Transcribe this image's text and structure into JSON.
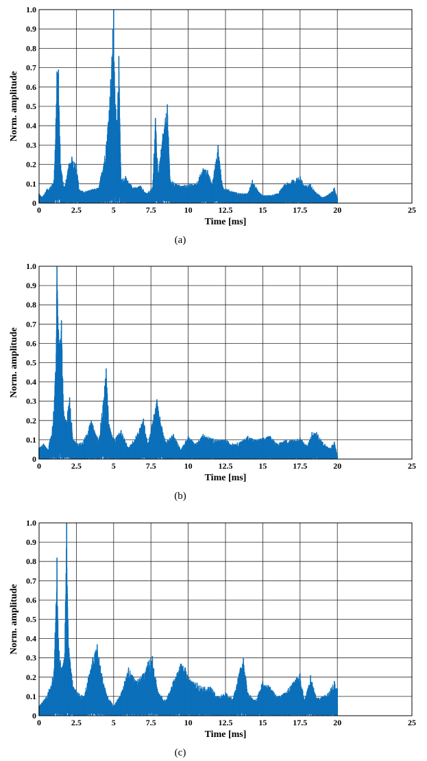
{
  "chart_data": [
    {
      "type": "line",
      "panel_label": "(a)",
      "xlabel": "Time [ms]",
      "ylabel": "Norm. amplitude",
      "xlim": [
        0,
        25
      ],
      "ylim": [
        0,
        1.0
      ],
      "xticks": [
        "0",
        "2.5",
        "5",
        "7.5",
        "10",
        "12.5",
        "15",
        "17.5",
        "20",
        "25"
      ],
      "yticks": [
        "0",
        "0.1",
        "0.2",
        "0.3",
        "0.4",
        "0.5",
        "0.6",
        "0.7",
        "0.8",
        "0.9",
        "1.0"
      ],
      "grid": true,
      "line_color": "#0b6fba",
      "series": [
        {
          "x": [
            0,
            0.2,
            0.5,
            0.8,
            1.0,
            1.2,
            1.3,
            1.45,
            1.7,
            2.0,
            2.2,
            2.5,
            2.7,
            3.0,
            3.5,
            4.0,
            4.5,
            4.8,
            4.95,
            5.0,
            5.05,
            5.2,
            5.35,
            5.5,
            5.8,
            6.1,
            6.5,
            6.8,
            7.2,
            7.6,
            7.8,
            8.0,
            8.3,
            8.6,
            8.8,
            9.2,
            9.6,
            10.0,
            10.5,
            11.0,
            11.3,
            11.6,
            12.0,
            12.3,
            12.7,
            13.0,
            13.5,
            14.0,
            14.3,
            14.7,
            15.0,
            15.5,
            16.0,
            16.5,
            17.0,
            17.5,
            17.8,
            18.2,
            18.5,
            19.0,
            19.5,
            19.8,
            20.0
          ],
          "y": [
            0.05,
            0.03,
            0.07,
            0.09,
            0.12,
            0.68,
            0.69,
            0.2,
            0.08,
            0.2,
            0.24,
            0.2,
            0.07,
            0.06,
            0.07,
            0.08,
            0.3,
            0.64,
            0.9,
            1.0,
            0.68,
            0.43,
            0.76,
            0.12,
            0.14,
            0.1,
            0.08,
            0.09,
            0.05,
            0.08,
            0.44,
            0.16,
            0.36,
            0.51,
            0.12,
            0.1,
            0.09,
            0.1,
            0.1,
            0.18,
            0.17,
            0.1,
            0.3,
            0.09,
            0.07,
            0.06,
            0.05,
            0.05,
            0.12,
            0.06,
            0.04,
            0.04,
            0.05,
            0.1,
            0.12,
            0.14,
            0.09,
            0.1,
            0.06,
            0.03,
            0.05,
            0.08,
            0.03
          ]
        }
      ]
    },
    {
      "type": "line",
      "panel_label": "(b)",
      "xlabel": "Time [ms]",
      "ylabel": "Norm. amplitude",
      "xlim": [
        0,
        25
      ],
      "ylim": [
        0,
        1.0
      ],
      "xticks": [
        "0",
        "2.5",
        "5",
        "7.5",
        "10",
        "12.5",
        "15",
        "17.5",
        "20",
        "25"
      ],
      "yticks": [
        "0",
        "0.1",
        "0.2",
        "0.3",
        "0.4",
        "0.5",
        "0.6",
        "0.7",
        "0.8",
        "0.9",
        "1.0"
      ],
      "grid": true,
      "line_color": "#0b6fba",
      "series": [
        {
          "x": [
            0,
            0.3,
            0.6,
            0.9,
            1.1,
            1.2,
            1.35,
            1.5,
            1.65,
            1.8,
            2.05,
            2.3,
            2.6,
            3.0,
            3.5,
            4.0,
            4.4,
            4.5,
            4.7,
            5.0,
            5.5,
            6.0,
            6.5,
            7.0,
            7.3,
            7.7,
            7.9,
            8.1,
            8.5,
            9.0,
            9.5,
            10.0,
            10.5,
            11.0,
            11.5,
            12.0,
            12.5,
            13.0,
            13.5,
            14.0,
            14.5,
            15.0,
            15.5,
            16.0,
            16.5,
            17.0,
            17.5,
            18.0,
            18.3,
            18.6,
            19.0,
            19.5,
            19.8,
            20.0
          ],
          "y": [
            0.06,
            0.08,
            0.05,
            0.17,
            0.45,
            1.0,
            0.6,
            0.72,
            0.25,
            0.2,
            0.32,
            0.1,
            0.08,
            0.1,
            0.2,
            0.1,
            0.38,
            0.47,
            0.18,
            0.1,
            0.15,
            0.06,
            0.12,
            0.21,
            0.08,
            0.23,
            0.31,
            0.22,
            0.09,
            0.13,
            0.05,
            0.12,
            0.08,
            0.13,
            0.11,
            0.1,
            0.1,
            0.08,
            0.09,
            0.12,
            0.1,
            0.11,
            0.12,
            0.08,
            0.1,
            0.1,
            0.11,
            0.07,
            0.14,
            0.14,
            0.09,
            0.06,
            0.09,
            0.02
          ]
        }
      ]
    },
    {
      "type": "line",
      "panel_label": "(c)",
      "xlabel": "Time [ms]",
      "ylabel": "Norm. amplitude",
      "xlim": [
        0,
        25
      ],
      "ylim": [
        0,
        1.0
      ],
      "xticks": [
        "0",
        "2.5",
        "5",
        "7.5",
        "10",
        "12.5",
        "15",
        "17.5",
        "20",
        "25"
      ],
      "yticks": [
        "0",
        "0.1",
        "0.2",
        "0.3",
        "0.4",
        "0.5",
        "0.6",
        "0.7",
        "0.8",
        "0.9",
        "1.0"
      ],
      "grid": true,
      "line_color": "#0b6fba",
      "series": [
        {
          "x": [
            0,
            0.3,
            0.6,
            0.9,
            1.0,
            1.2,
            1.3,
            1.5,
            1.7,
            1.85,
            2.0,
            2.3,
            2.6,
            3.0,
            3.3,
            3.6,
            3.9,
            4.2,
            4.6,
            5.0,
            5.5,
            6.0,
            6.5,
            7.0,
            7.3,
            7.6,
            8.0,
            8.5,
            9.0,
            9.5,
            9.8,
            10.2,
            10.6,
            11.0,
            11.5,
            12.0,
            12.5,
            13.0,
            13.5,
            13.7,
            14.0,
            14.5,
            15.0,
            15.5,
            16.0,
            16.5,
            17.0,
            17.5,
            17.8,
            18.2,
            18.6,
            19.0,
            19.4,
            19.8,
            20.0
          ],
          "y": [
            0.05,
            0.08,
            0.12,
            0.2,
            0.23,
            0.82,
            0.4,
            0.25,
            0.3,
            1.0,
            0.35,
            0.15,
            0.12,
            0.1,
            0.2,
            0.3,
            0.37,
            0.22,
            0.1,
            0.05,
            0.12,
            0.25,
            0.18,
            0.22,
            0.28,
            0.31,
            0.12,
            0.08,
            0.18,
            0.27,
            0.25,
            0.18,
            0.17,
            0.15,
            0.15,
            0.1,
            0.12,
            0.09,
            0.25,
            0.3,
            0.12,
            0.08,
            0.18,
            0.15,
            0.1,
            0.12,
            0.17,
            0.22,
            0.08,
            0.21,
            0.09,
            0.1,
            0.12,
            0.18,
            0.14
          ]
        }
      ]
    }
  ]
}
